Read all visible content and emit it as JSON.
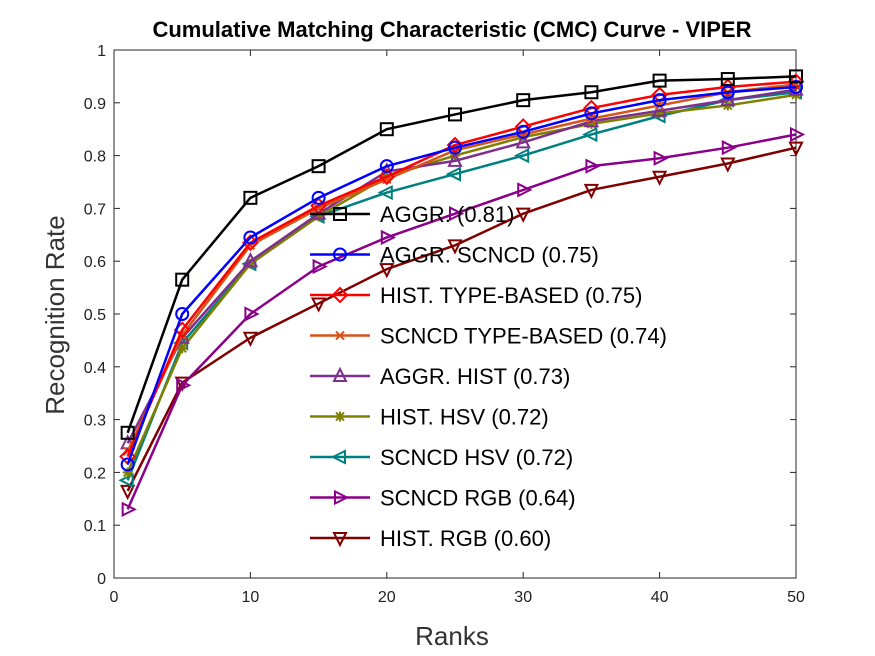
{
  "chart_data": {
    "type": "line",
    "title": "Cumulative Matching Characteristic (CMC) Curve - VIPER",
    "xlabel": "Ranks",
    "ylabel": "Recognition Rate",
    "xlim": [
      0,
      50
    ],
    "ylim": [
      0,
      1
    ],
    "xticks": [
      "0",
      "10",
      "20",
      "30",
      "40",
      "50"
    ],
    "yticks": [
      "0",
      "0.1",
      "0.2",
      "0.3",
      "0.4",
      "0.5",
      "0.6",
      "0.7",
      "0.8",
      "0.9",
      "1"
    ],
    "grid": false,
    "legend_position": "center-right",
    "x": [
      1,
      5,
      10,
      15,
      20,
      25,
      30,
      35,
      40,
      45,
      50
    ],
    "series": [
      {
        "name": "AGGR. (0.81)",
        "color": "#000000",
        "marker": "square",
        "values": [
          0.275,
          0.565,
          0.72,
          0.78,
          0.85,
          0.878,
          0.905,
          0.92,
          0.942,
          0.945,
          0.95
        ]
      },
      {
        "name": "AGGR. SCNCD (0.75)",
        "color": "#0000ff",
        "marker": "circle",
        "values": [
          0.215,
          0.5,
          0.645,
          0.72,
          0.78,
          0.815,
          0.845,
          0.88,
          0.905,
          0.92,
          0.93
        ]
      },
      {
        "name": "HIST. TYPE-BASED (0.75)",
        "color": "#ff0000",
        "marker": "diamond",
        "values": [
          0.23,
          0.47,
          0.635,
          0.705,
          0.76,
          0.82,
          0.855,
          0.89,
          0.915,
          0.93,
          0.94
        ]
      },
      {
        "name": "SCNCD TYPE-BASED (0.74)",
        "color": "#d95319",
        "marker": "x",
        "values": [
          0.24,
          0.46,
          0.63,
          0.7,
          0.755,
          0.81,
          0.84,
          0.87,
          0.895,
          0.92,
          0.935
        ]
      },
      {
        "name": "AGGR. HIST (0.73)",
        "color": "#7e2f8e",
        "marker": "triangle-up",
        "values": [
          0.255,
          0.455,
          0.6,
          0.69,
          0.77,
          0.79,
          0.825,
          0.865,
          0.885,
          0.905,
          0.925
        ]
      },
      {
        "name": "HIST. HSV (0.72)",
        "color": "#808000",
        "marker": "star",
        "values": [
          0.2,
          0.435,
          0.595,
          0.685,
          0.76,
          0.8,
          0.835,
          0.86,
          0.88,
          0.895,
          0.915
        ]
      },
      {
        "name": "SCNCD HSV (0.72)",
        "color": "#008080",
        "marker": "triangle-left",
        "values": [
          0.185,
          0.445,
          0.595,
          0.685,
          0.73,
          0.765,
          0.8,
          0.84,
          0.875,
          0.905,
          0.92
        ]
      },
      {
        "name": "SCNCD RGB (0.64)",
        "color": "#8b008b",
        "marker": "triangle-right",
        "values": [
          0.13,
          0.365,
          0.5,
          0.59,
          0.645,
          0.69,
          0.735,
          0.78,
          0.795,
          0.815,
          0.84
        ]
      },
      {
        "name": "HIST. RGB (0.60)",
        "color": "#800000",
        "marker": "triangle-down",
        "values": [
          0.165,
          0.37,
          0.455,
          0.52,
          0.585,
          0.63,
          0.69,
          0.735,
          0.76,
          0.785,
          0.815
        ]
      }
    ]
  }
}
